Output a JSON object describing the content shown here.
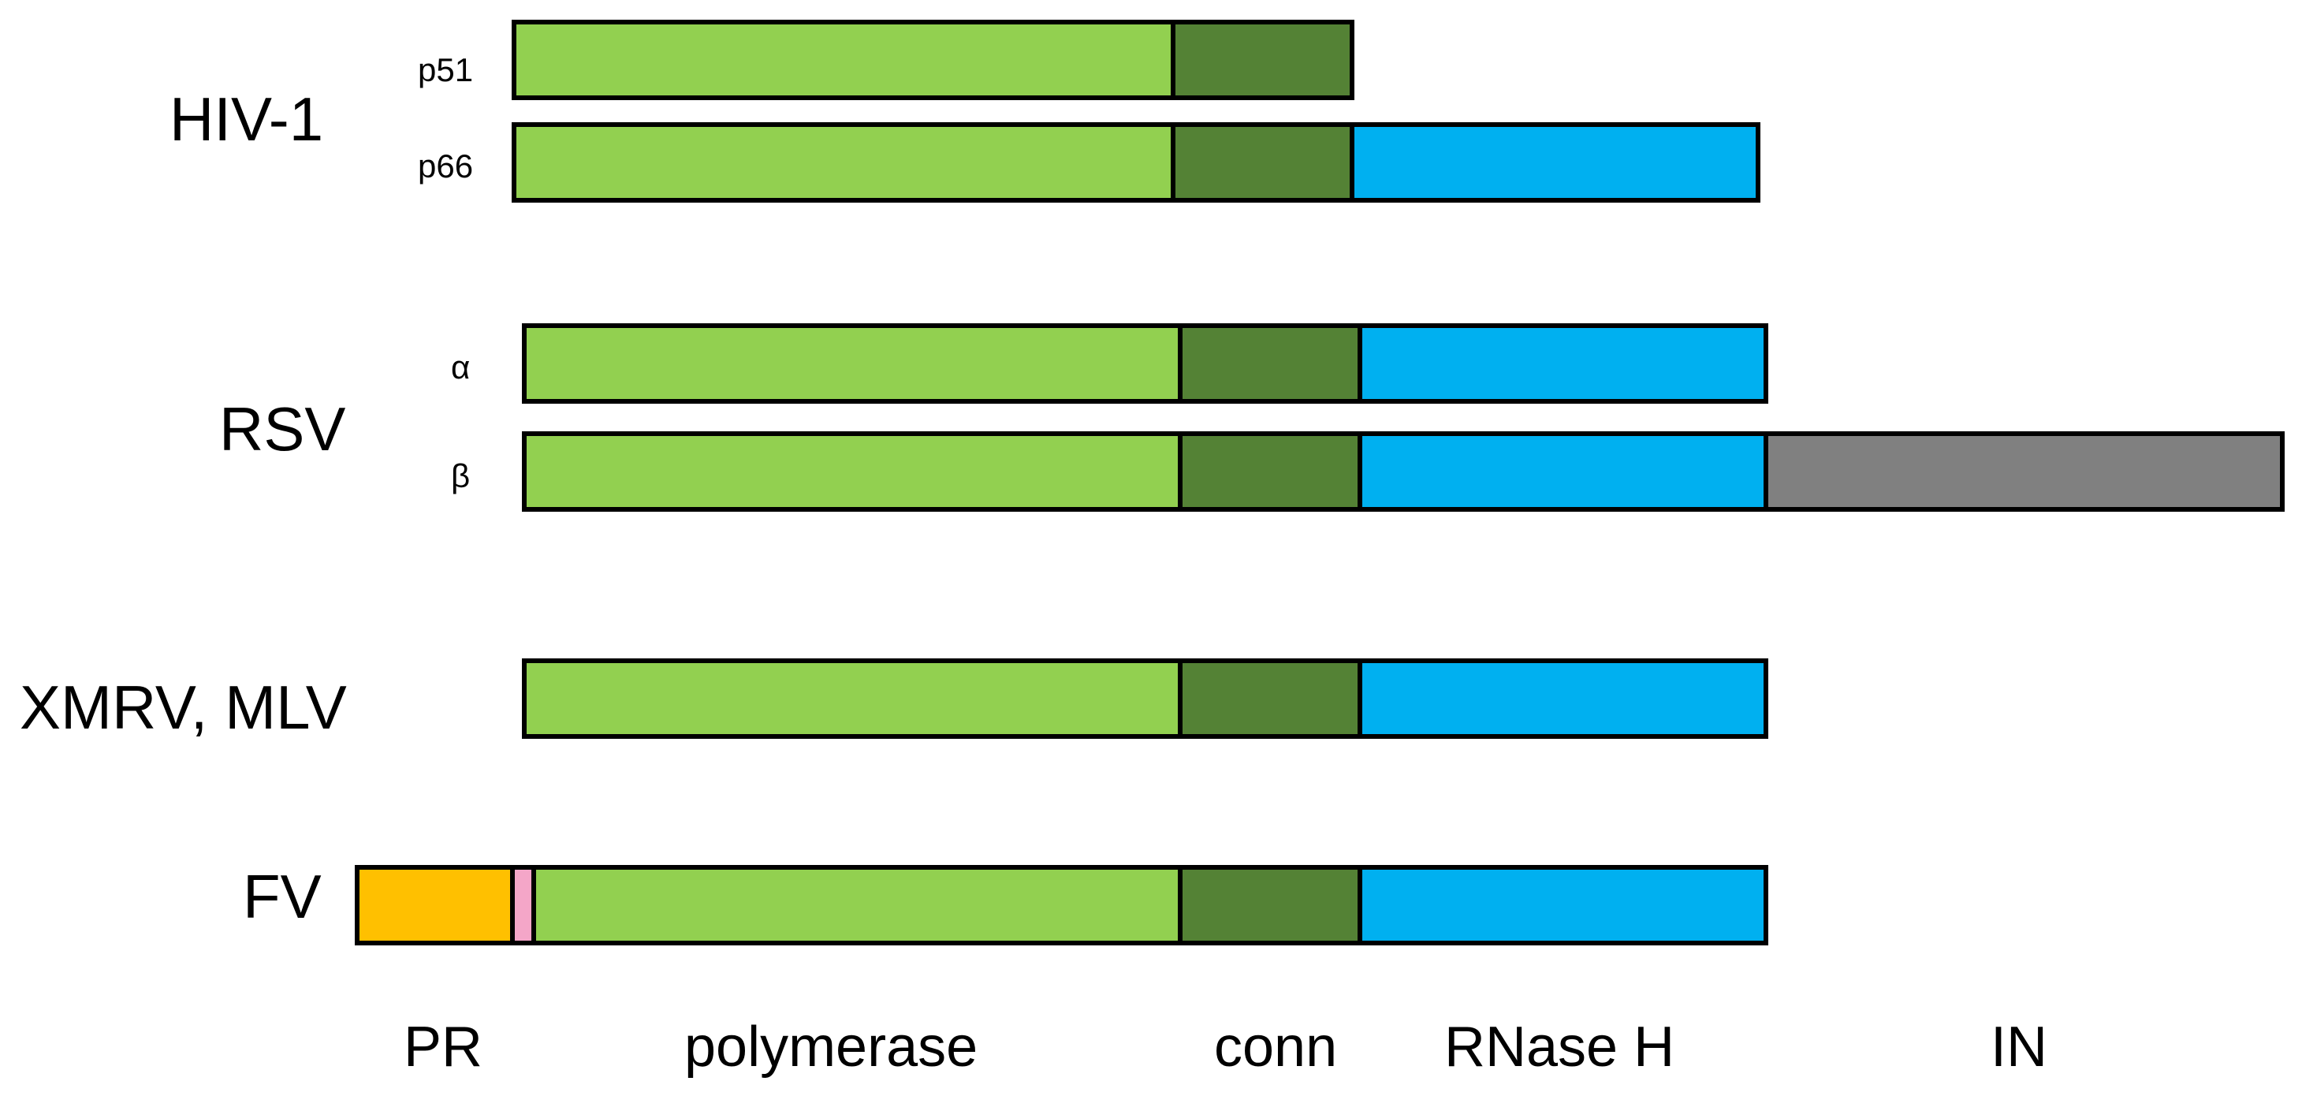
{
  "colors": {
    "polymerase": "#92d050",
    "conn": "#548235",
    "rnase_h": "#00b0f0",
    "in": "#808080",
    "pr": "#ffc000",
    "linker": "#f4a6c8",
    "outline": "#000000"
  },
  "groups": {
    "hiv1": {
      "name": "HIV-1",
      "p51": {
        "label": "p51",
        "domains": [
          "polymerase",
          "conn"
        ]
      },
      "p66": {
        "label": "p66",
        "domains": [
          "polymerase",
          "conn",
          "rnase_h"
        ]
      }
    },
    "rsv": {
      "name": "RSV",
      "alpha": {
        "label": "α",
        "domains": [
          "polymerase",
          "conn",
          "rnase_h"
        ]
      },
      "beta": {
        "label": "β",
        "domains": [
          "polymerase",
          "conn",
          "rnase_h",
          "in"
        ]
      }
    },
    "xmrv": {
      "name": "XMRV, MLV",
      "domains": [
        "polymerase",
        "conn",
        "rnase_h"
      ]
    },
    "fv": {
      "name": "FV",
      "domains": [
        "pr",
        "linker",
        "polymerase",
        "conn",
        "rnase_h"
      ]
    }
  },
  "domain_labels": {
    "pr": "PR",
    "polymerase": "polymerase",
    "conn": "conn",
    "rnase_h": "RNase H",
    "in": "IN"
  }
}
